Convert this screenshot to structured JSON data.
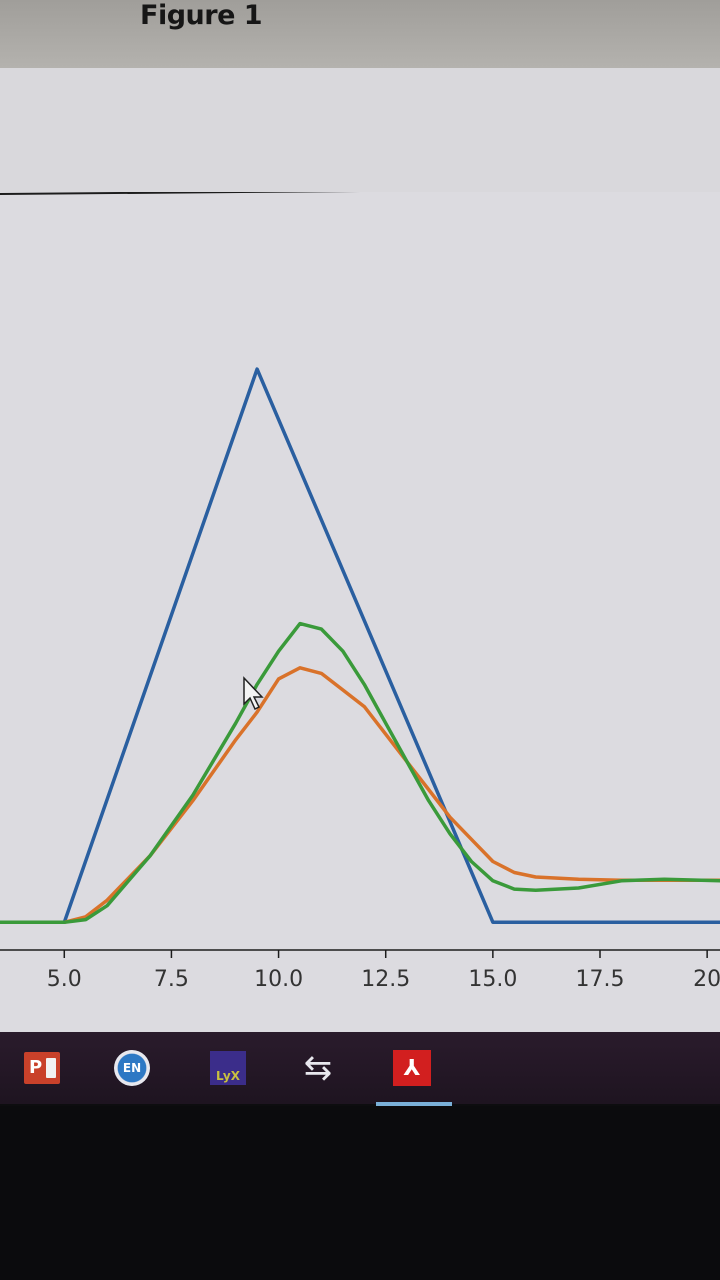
{
  "window": {
    "title": "Figure 1"
  },
  "chart_data": {
    "type": "line",
    "x_ticks": [
      "5.0",
      "7.5",
      "10.0",
      "12.5",
      "15.0",
      "17.5",
      "20"
    ],
    "xlim": [
      3.5,
      20.3
    ],
    "ylim": [
      -0.05,
      1.32
    ],
    "grid": false,
    "series": [
      {
        "color": "#2a5fa0",
        "x": [
          3.5,
          5.0,
          9.5,
          15.0,
          20.3
        ],
        "y": [
          0.0,
          0.0,
          1.0,
          0.0,
          0.0
        ]
      },
      {
        "color": "#d9722a",
        "x": [
          3.5,
          5.0,
          5.5,
          6.0,
          7.0,
          8.0,
          9.0,
          9.5,
          10.0,
          10.5,
          11.0,
          11.5,
          12.0,
          12.5,
          13.0,
          13.5,
          14.0,
          14.5,
          15.0,
          15.5,
          16.0,
          17.0,
          18.0,
          19.0,
          20.3
        ],
        "y": [
          0.0,
          0.0,
          0.01,
          0.04,
          0.12,
          0.22,
          0.33,
          0.38,
          0.44,
          0.46,
          0.45,
          0.42,
          0.39,
          0.34,
          0.29,
          0.24,
          0.19,
          0.15,
          0.11,
          0.09,
          0.082,
          0.078,
          0.076,
          0.076,
          0.076
        ]
      },
      {
        "color": "#3a9a3a",
        "x": [
          3.5,
          5.0,
          5.5,
          6.0,
          7.0,
          8.0,
          9.0,
          9.5,
          10.0,
          10.5,
          11.0,
          11.5,
          12.0,
          12.5,
          13.0,
          13.5,
          14.0,
          14.5,
          15.0,
          15.5,
          16.0,
          17.0,
          18.0,
          19.0,
          20.3
        ],
        "y": [
          0.0,
          0.0,
          0.005,
          0.03,
          0.12,
          0.23,
          0.36,
          0.43,
          0.49,
          0.54,
          0.53,
          0.49,
          0.43,
          0.36,
          0.29,
          0.22,
          0.16,
          0.11,
          0.075,
          0.06,
          0.058,
          0.062,
          0.075,
          0.078,
          0.075
        ]
      }
    ]
  },
  "taskbar": {
    "apps": [
      {
        "label": "P",
        "icon": "powerpoint-icon"
      },
      {
        "label": "EN",
        "icon": "language-icon"
      },
      {
        "label": "LyX",
        "icon": "lyx-icon"
      },
      {
        "label": "⇆",
        "icon": "transfer-icon"
      },
      {
        "label": "⅄",
        "icon": "acrobat-icon"
      }
    ]
  }
}
